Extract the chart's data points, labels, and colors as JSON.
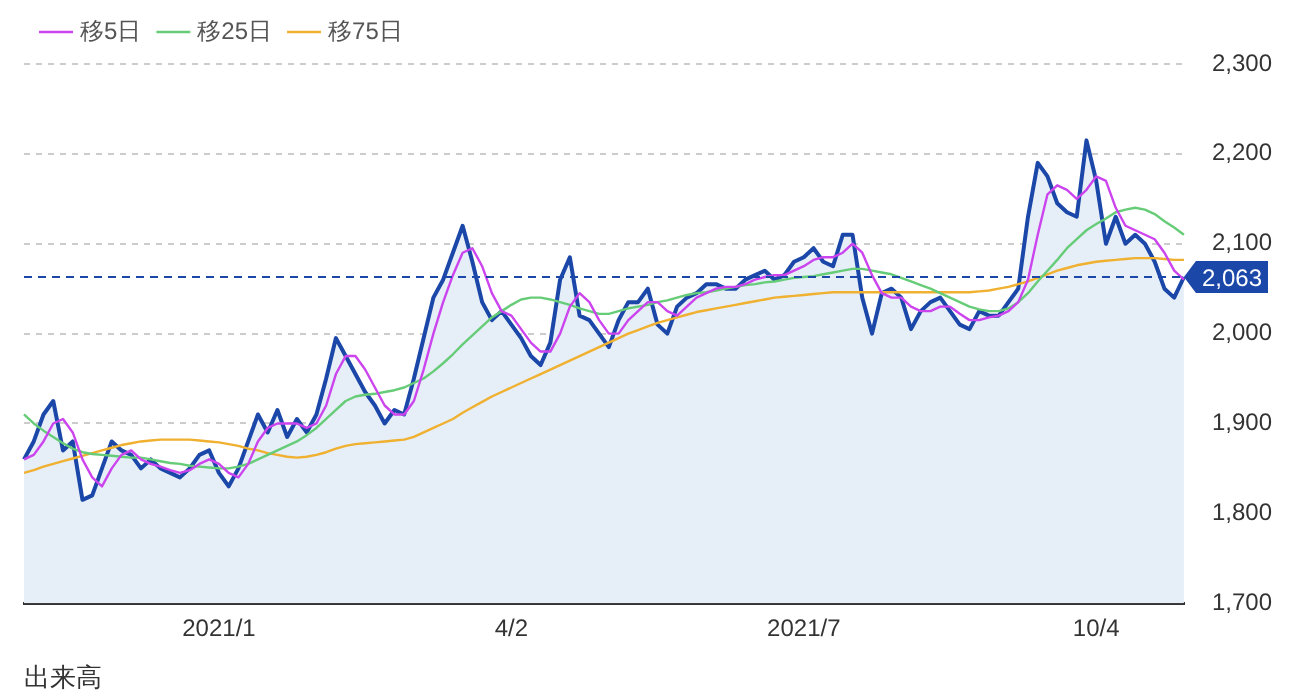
{
  "chart_data": {
    "type": "line",
    "categories": [
      null,
      null,
      null,
      null,
      null,
      null,
      null,
      null,
      null,
      null,
      null,
      null,
      null,
      null,
      null,
      null,
      null,
      null,
      null,
      null,
      "2021/1",
      null,
      null,
      null,
      null,
      null,
      null,
      null,
      null,
      null,
      null,
      null,
      null,
      null,
      null,
      null,
      null,
      null,
      null,
      null,
      null,
      null,
      null,
      null,
      null,
      null,
      null,
      null,
      null,
      null,
      "4/2",
      null,
      null,
      null,
      null,
      null,
      null,
      null,
      null,
      null,
      null,
      null,
      null,
      null,
      null,
      null,
      null,
      null,
      null,
      null,
      null,
      null,
      null,
      null,
      null,
      null,
      null,
      null,
      null,
      null,
      "2021/7",
      null,
      null,
      null,
      null,
      null,
      null,
      null,
      null,
      null,
      null,
      null,
      null,
      null,
      null,
      null,
      null,
      null,
      null,
      null,
      null,
      null,
      null,
      null,
      null,
      null,
      null,
      null,
      null,
      null,
      "10/4",
      null,
      null,
      null,
      null,
      null,
      null,
      null,
      null,
      null
    ],
    "series": [
      {
        "type": "area",
        "color": "#1a47a8",
        "values": [
          1860,
          1880,
          1910,
          1925,
          1870,
          1880,
          1815,
          1820,
          1850,
          1880,
          1870,
          1865,
          1850,
          1860,
          1850,
          1845,
          1840,
          1850,
          1865,
          1870,
          1845,
          1830,
          1850,
          1880,
          1910,
          1890,
          1915,
          1885,
          1905,
          1890,
          1910,
          1950,
          1995,
          1975,
          1955,
          1935,
          1920,
          1900,
          1915,
          1910,
          1950,
          1995,
          2040,
          2060,
          2090,
          2120,
          2080,
          2035,
          2015,
          2025,
          2010,
          1995,
          1975,
          1965,
          1990,
          2060,
          2085,
          2020,
          2015,
          2000,
          1985,
          2015,
          2035,
          2035,
          2050,
          2010,
          2000,
          2030,
          2040,
          2045,
          2055,
          2055,
          2050,
          2050,
          2060,
          2065,
          2070,
          2060,
          2065,
          2080,
          2085,
          2095,
          2080,
          2075,
          2110,
          2110,
          2040,
          2000,
          2045,
          2050,
          2040,
          2005,
          2025,
          2035,
          2040,
          2025,
          2010,
          2005,
          2025,
          2020,
          2020,
          2035,
          2050,
          2130,
          2190,
          2175,
          2145,
          2135,
          2130,
          2215,
          2170,
          2100,
          2130,
          2100,
          2110,
          2100,
          2080,
          2050,
          2040,
          2063
        ]
      },
      {
        "name": "移5日",
        "color": "#cc44ee",
        "values": [
          1860,
          1865,
          1880,
          1900,
          1905,
          1890,
          1860,
          1840,
          1830,
          1850,
          1865,
          1870,
          1860,
          1855,
          1852,
          1848,
          1845,
          1848,
          1855,
          1860,
          1855,
          1845,
          1840,
          1855,
          1880,
          1895,
          1900,
          1900,
          1900,
          1895,
          1900,
          1920,
          1955,
          1975,
          1975,
          1960,
          1940,
          1920,
          1910,
          1910,
          1925,
          1960,
          2000,
          2035,
          2065,
          2090,
          2095,
          2075,
          2045,
          2025,
          2020,
          2005,
          1990,
          1980,
          1980,
          2000,
          2030,
          2045,
          2035,
          2015,
          2000,
          2000,
          2015,
          2025,
          2035,
          2035,
          2025,
          2020,
          2030,
          2040,
          2045,
          2050,
          2052,
          2052,
          2055,
          2060,
          2063,
          2065,
          2065,
          2070,
          2075,
          2082,
          2085,
          2085,
          2090,
          2100,
          2090,
          2065,
          2045,
          2040,
          2040,
          2030,
          2025,
          2025,
          2030,
          2030,
          2022,
          2015,
          2015,
          2018,
          2020,
          2025,
          2035,
          2060,
          2110,
          2155,
          2165,
          2160,
          2150,
          2160,
          2175,
          2170,
          2140,
          2120,
          2115,
          2110,
          2105,
          2090,
          2070,
          2060
        ]
      },
      {
        "name": "移25日",
        "color": "#66cc77",
        "values": [
          1910,
          1900,
          1892,
          1885,
          1878,
          1872,
          1868,
          1866,
          1865,
          1864,
          1863,
          1862,
          1862,
          1860,
          1858,
          1856,
          1855,
          1853,
          1852,
          1851,
          1850,
          1850,
          1852,
          1855,
          1860,
          1865,
          1870,
          1875,
          1880,
          1887,
          1895,
          1905,
          1915,
          1925,
          1930,
          1932,
          1933,
          1935,
          1937,
          1940,
          1945,
          1950,
          1958,
          1967,
          1977,
          1988,
          1998,
          2008,
          2018,
          2025,
          2032,
          2038,
          2040,
          2040,
          2038,
          2035,
          2032,
          2028,
          2025,
          2022,
          2022,
          2025,
          2028,
          2030,
          2032,
          2035,
          2037,
          2040,
          2043,
          2045,
          2046,
          2048,
          2050,
          2052,
          2054,
          2055,
          2057,
          2058,
          2060,
          2062,
          2063,
          2064,
          2066,
          2068,
          2070,
          2072,
          2072,
          2070,
          2068,
          2066,
          2062,
          2058,
          2054,
          2050,
          2045,
          2040,
          2035,
          2030,
          2027,
          2025,
          2025,
          2028,
          2035,
          2045,
          2058,
          2070,
          2082,
          2095,
          2105,
          2115,
          2122,
          2128,
          2135,
          2138,
          2140,
          2138,
          2133,
          2125,
          2118,
          2110
        ]
      },
      {
        "name": "移75日",
        "color": "#f0b030",
        "values": [
          1845,
          1848,
          1852,
          1855,
          1858,
          1861,
          1864,
          1867,
          1870,
          1873,
          1876,
          1878,
          1880,
          1881,
          1882,
          1882,
          1882,
          1882,
          1881,
          1880,
          1879,
          1877,
          1875,
          1872,
          1870,
          1867,
          1865,
          1863,
          1862,
          1863,
          1865,
          1868,
          1872,
          1875,
          1877,
          1878,
          1879,
          1880,
          1881,
          1882,
          1885,
          1890,
          1895,
          1900,
          1905,
          1912,
          1918,
          1924,
          1930,
          1935,
          1940,
          1945,
          1950,
          1955,
          1960,
          1965,
          1970,
          1975,
          1980,
          1985,
          1990,
          1995,
          2000,
          2004,
          2008,
          2012,
          2015,
          2018,
          2021,
          2024,
          2026,
          2028,
          2030,
          2032,
          2034,
          2036,
          2038,
          2040,
          2041,
          2042,
          2043,
          2044,
          2045,
          2046,
          2046,
          2046,
          2046,
          2046,
          2046,
          2046,
          2046,
          2046,
          2046,
          2046,
          2046,
          2046,
          2046,
          2046,
          2047,
          2048,
          2050,
          2052,
          2055,
          2058,
          2062,
          2066,
          2070,
          2073,
          2076,
          2078,
          2080,
          2081,
          2082,
          2083,
          2084,
          2084,
          2084,
          2083,
          2082,
          2082
        ]
      }
    ],
    "ylim": [
      1700,
      2300
    ],
    "yticks": [
      {
        "value": 1700,
        "label": "1,700"
      },
      {
        "value": 1800,
        "label": "1,800"
      },
      {
        "value": 1900,
        "label": "1,900"
      },
      {
        "value": 2000,
        "label": "2,000"
      },
      {
        "value": 2100,
        "label": "2,100"
      },
      {
        "value": 2200,
        "label": "2,200"
      },
      {
        "value": 2300,
        "label": "2,300"
      }
    ],
    "grid": "y",
    "legend": "top left",
    "marker": "none",
    "ref_lines": [
      {
        "axis": "y",
        "value": 2063,
        "label": "2,063",
        "color": "#1a47a8",
        "line_style": "dashed"
      }
    ],
    "annotations": [
      "出来高"
    ]
  }
}
